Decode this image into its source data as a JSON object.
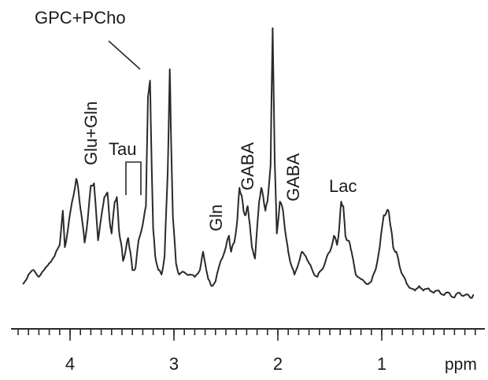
{
  "chart_data": {
    "type": "line",
    "xlabel": "ppm",
    "xlim": [
      4.5,
      0.1
    ],
    "x_reversed": true,
    "x_ticks": [
      "4",
      "3",
      "2",
      "1"
    ],
    "x_tick_values": [
      4,
      3,
      2,
      1
    ],
    "grid": false,
    "y_axis_shown": false,
    "series": [
      {
        "x": [
          4.45,
          4.4,
          4.35,
          4.3,
          4.25,
          4.2,
          4.15,
          4.1,
          4.07,
          4.05,
          4.02,
          3.98,
          3.94,
          3.92,
          3.89,
          3.86,
          3.83,
          3.8,
          3.77,
          3.75,
          3.73,
          3.7,
          3.67,
          3.64,
          3.62,
          3.6,
          3.57,
          3.55,
          3.53,
          3.51,
          3.49,
          3.46,
          3.44,
          3.42,
          3.4,
          3.37,
          3.34,
          3.3,
          3.27,
          3.25,
          3.23,
          3.22,
          3.2,
          3.18,
          3.15,
          3.12,
          3.09,
          3.06,
          3.04,
          3.03,
          3.01,
          2.98,
          2.95,
          2.9,
          2.85,
          2.8,
          2.75,
          2.72,
          2.7,
          2.67,
          2.64,
          2.6,
          2.55,
          2.5,
          2.47,
          2.45,
          2.42,
          2.39,
          2.37,
          2.35,
          2.33,
          2.31,
          2.29,
          2.27,
          2.25,
          2.22,
          2.2,
          2.18,
          2.16,
          2.14,
          2.12,
          2.1,
          2.07,
          2.05,
          2.03,
          2.01,
          1.98,
          1.95,
          1.92,
          1.9,
          1.87,
          1.84,
          1.8,
          1.77,
          1.73,
          1.7,
          1.66,
          1.62,
          1.58,
          1.54,
          1.5,
          1.46,
          1.43,
          1.41,
          1.39,
          1.37,
          1.35,
          1.33,
          1.31,
          1.29,
          1.27,
          1.25,
          1.2,
          1.15,
          1.1,
          1.06,
          1.02,
          0.98,
          0.95,
          0.93,
          0.91,
          0.89,
          0.86,
          0.83,
          0.8,
          0.76,
          0.72,
          0.68,
          0.64,
          0.6,
          0.55,
          0.5,
          0.45,
          0.4,
          0.35,
          0.3,
          0.25,
          0.2,
          0.15,
          0.12
        ],
        "y": [
          0.06,
          0.1,
          0.12,
          0.09,
          0.12,
          0.15,
          0.18,
          0.23,
          0.38,
          0.22,
          0.3,
          0.42,
          0.52,
          0.47,
          0.36,
          0.24,
          0.34,
          0.49,
          0.5,
          0.38,
          0.25,
          0.35,
          0.44,
          0.46,
          0.34,
          0.28,
          0.42,
          0.44,
          0.3,
          0.24,
          0.16,
          0.22,
          0.26,
          0.2,
          0.12,
          0.13,
          0.25,
          0.32,
          0.4,
          0.88,
          0.95,
          0.7,
          0.3,
          0.18,
          0.12,
          0.1,
          0.18,
          0.55,
          1.0,
          0.75,
          0.35,
          0.15,
          0.1,
          0.11,
          0.1,
          0.09,
          0.12,
          0.2,
          0.15,
          0.08,
          0.05,
          0.07,
          0.16,
          0.22,
          0.27,
          0.2,
          0.24,
          0.34,
          0.48,
          0.45,
          0.38,
          0.36,
          0.4,
          0.32,
          0.22,
          0.17,
          0.3,
          0.42,
          0.48,
          0.44,
          0.38,
          0.42,
          0.58,
          1.18,
          0.6,
          0.28,
          0.42,
          0.38,
          0.26,
          0.2,
          0.14,
          0.1,
          0.15,
          0.2,
          0.18,
          0.15,
          0.11,
          0.09,
          0.12,
          0.16,
          0.2,
          0.27,
          0.23,
          0.3,
          0.42,
          0.4,
          0.27,
          0.25,
          0.24,
          0.2,
          0.15,
          0.1,
          0.08,
          0.06,
          0.07,
          0.12,
          0.22,
          0.36,
          0.38,
          0.37,
          0.3,
          0.22,
          0.2,
          0.14,
          0.1,
          0.06,
          0.04,
          0.03,
          0.05,
          0.03,
          0.04,
          0.02,
          0.03,
          0.01,
          0.02,
          0.0,
          0.02,
          0.01,
          0.0,
          0.01
        ]
      }
    ],
    "annotations": [
      {
        "text": "GPC+PCho",
        "ppm": 3.22
      },
      {
        "text": "Glu+Gln",
        "ppm": 3.78
      },
      {
        "text": "Tau",
        "ppm": 3.36
      },
      {
        "text": "Gln",
        "ppm": 2.52
      },
      {
        "text": "GABA",
        "ppm": 2.3
      },
      {
        "text": "GABA",
        "ppm": 1.93
      },
      {
        "text": "Lac",
        "ppm": 1.33
      }
    ]
  }
}
